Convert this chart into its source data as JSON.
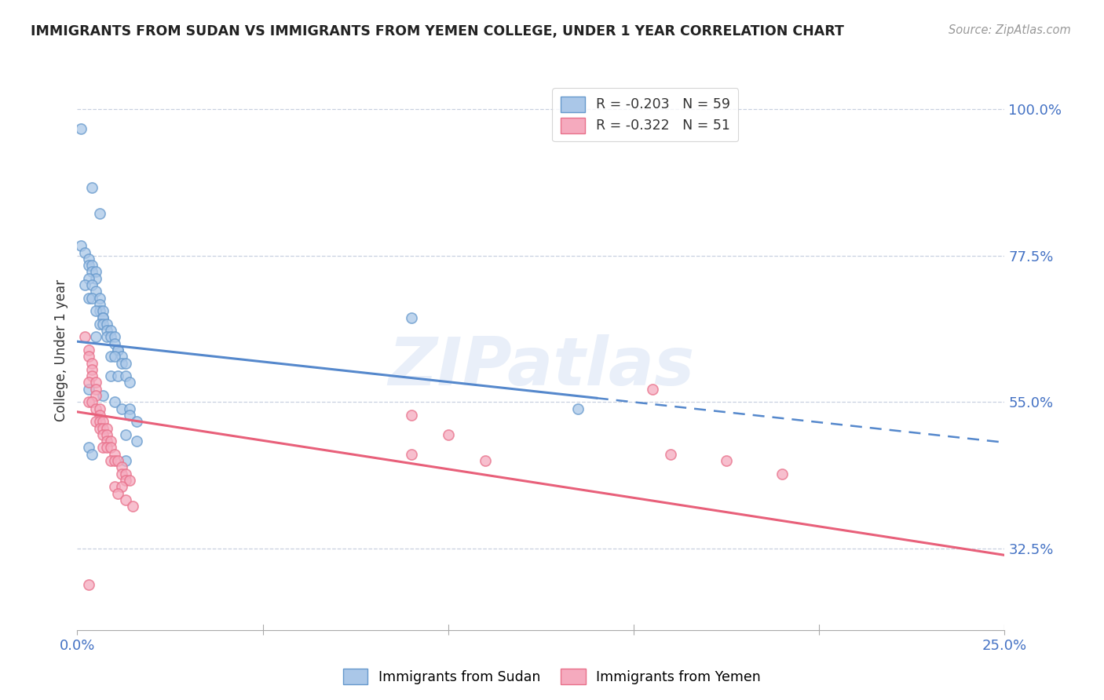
{
  "title": "IMMIGRANTS FROM SUDAN VS IMMIGRANTS FROM YEMEN COLLEGE, UNDER 1 YEAR CORRELATION CHART",
  "source": "Source: ZipAtlas.com",
  "ylabel": "College, Under 1 year",
  "right_yticks": [
    0.325,
    0.55,
    0.775,
    1.0
  ],
  "right_ytick_labels": [
    "32.5%",
    "55.0%",
    "77.5%",
    "100.0%"
  ],
  "xlim": [
    0.0,
    0.25
  ],
  "ylim": [
    0.2,
    1.06
  ],
  "legend_R_sudan": "-0.203",
  "legend_N_sudan": "59",
  "legend_R_yemen": "-0.322",
  "legend_N_yemen": "51",
  "sudan_color": "#aac7e8",
  "sudan_edge": "#6699cc",
  "yemen_color": "#f5aabe",
  "yemen_edge": "#e8708a",
  "trend_sudan_color": "#5588cc",
  "trend_yemen_color": "#e8607a",
  "watermark": "ZIPatlas",
  "sudan_trend_x0": 0.0,
  "sudan_trend_y0": 0.643,
  "sudan_trend_x1": 0.25,
  "sudan_trend_y1": 0.488,
  "sudan_trend_solid_end": 0.14,
  "yemen_trend_x0": 0.0,
  "yemen_trend_y0": 0.535,
  "yemen_trend_x1": 0.25,
  "yemen_trend_y1": 0.315,
  "sudan_points": [
    [
      0.001,
      0.97
    ],
    [
      0.004,
      0.88
    ],
    [
      0.006,
      0.84
    ],
    [
      0.001,
      0.79
    ],
    [
      0.002,
      0.78
    ],
    [
      0.003,
      0.77
    ],
    [
      0.003,
      0.76
    ],
    [
      0.004,
      0.76
    ],
    [
      0.004,
      0.75
    ],
    [
      0.005,
      0.75
    ],
    [
      0.005,
      0.74
    ],
    [
      0.003,
      0.74
    ],
    [
      0.002,
      0.73
    ],
    [
      0.004,
      0.73
    ],
    [
      0.005,
      0.72
    ],
    [
      0.003,
      0.71
    ],
    [
      0.004,
      0.71
    ],
    [
      0.006,
      0.71
    ],
    [
      0.006,
      0.7
    ],
    [
      0.006,
      0.69
    ],
    [
      0.005,
      0.69
    ],
    [
      0.007,
      0.69
    ],
    [
      0.007,
      0.68
    ],
    [
      0.007,
      0.68
    ],
    [
      0.006,
      0.67
    ],
    [
      0.007,
      0.67
    ],
    [
      0.008,
      0.67
    ],
    [
      0.008,
      0.66
    ],
    [
      0.009,
      0.66
    ],
    [
      0.005,
      0.65
    ],
    [
      0.008,
      0.65
    ],
    [
      0.009,
      0.65
    ],
    [
      0.01,
      0.65
    ],
    [
      0.01,
      0.64
    ],
    [
      0.011,
      0.63
    ],
    [
      0.011,
      0.63
    ],
    [
      0.012,
      0.62
    ],
    [
      0.009,
      0.62
    ],
    [
      0.01,
      0.62
    ],
    [
      0.012,
      0.61
    ],
    [
      0.013,
      0.61
    ],
    [
      0.009,
      0.59
    ],
    [
      0.011,
      0.59
    ],
    [
      0.013,
      0.59
    ],
    [
      0.014,
      0.58
    ],
    [
      0.003,
      0.57
    ],
    [
      0.007,
      0.56
    ],
    [
      0.01,
      0.55
    ],
    [
      0.012,
      0.54
    ],
    [
      0.014,
      0.54
    ],
    [
      0.014,
      0.53
    ],
    [
      0.016,
      0.52
    ],
    [
      0.013,
      0.5
    ],
    [
      0.016,
      0.49
    ],
    [
      0.003,
      0.48
    ],
    [
      0.004,
      0.47
    ],
    [
      0.013,
      0.46
    ],
    [
      0.09,
      0.68
    ],
    [
      0.135,
      0.54
    ]
  ],
  "yemen_points": [
    [
      0.002,
      0.65
    ],
    [
      0.003,
      0.63
    ],
    [
      0.003,
      0.62
    ],
    [
      0.004,
      0.61
    ],
    [
      0.004,
      0.6
    ],
    [
      0.004,
      0.59
    ],
    [
      0.003,
      0.58
    ],
    [
      0.005,
      0.58
    ],
    [
      0.005,
      0.57
    ],
    [
      0.005,
      0.56
    ],
    [
      0.003,
      0.55
    ],
    [
      0.004,
      0.55
    ],
    [
      0.005,
      0.54
    ],
    [
      0.006,
      0.54
    ],
    [
      0.006,
      0.53
    ],
    [
      0.005,
      0.52
    ],
    [
      0.006,
      0.52
    ],
    [
      0.007,
      0.52
    ],
    [
      0.006,
      0.51
    ],
    [
      0.007,
      0.51
    ],
    [
      0.008,
      0.51
    ],
    [
      0.007,
      0.5
    ],
    [
      0.008,
      0.5
    ],
    [
      0.008,
      0.49
    ],
    [
      0.009,
      0.49
    ],
    [
      0.007,
      0.48
    ],
    [
      0.008,
      0.48
    ],
    [
      0.009,
      0.48
    ],
    [
      0.01,
      0.47
    ],
    [
      0.009,
      0.46
    ],
    [
      0.01,
      0.46
    ],
    [
      0.011,
      0.46
    ],
    [
      0.012,
      0.45
    ],
    [
      0.012,
      0.44
    ],
    [
      0.013,
      0.44
    ],
    [
      0.013,
      0.43
    ],
    [
      0.014,
      0.43
    ],
    [
      0.01,
      0.42
    ],
    [
      0.012,
      0.42
    ],
    [
      0.011,
      0.41
    ],
    [
      0.013,
      0.4
    ],
    [
      0.015,
      0.39
    ],
    [
      0.09,
      0.53
    ],
    [
      0.1,
      0.5
    ],
    [
      0.09,
      0.47
    ],
    [
      0.11,
      0.46
    ],
    [
      0.155,
      0.57
    ],
    [
      0.16,
      0.47
    ],
    [
      0.175,
      0.46
    ],
    [
      0.003,
      0.27
    ],
    [
      0.19,
      0.44
    ]
  ]
}
